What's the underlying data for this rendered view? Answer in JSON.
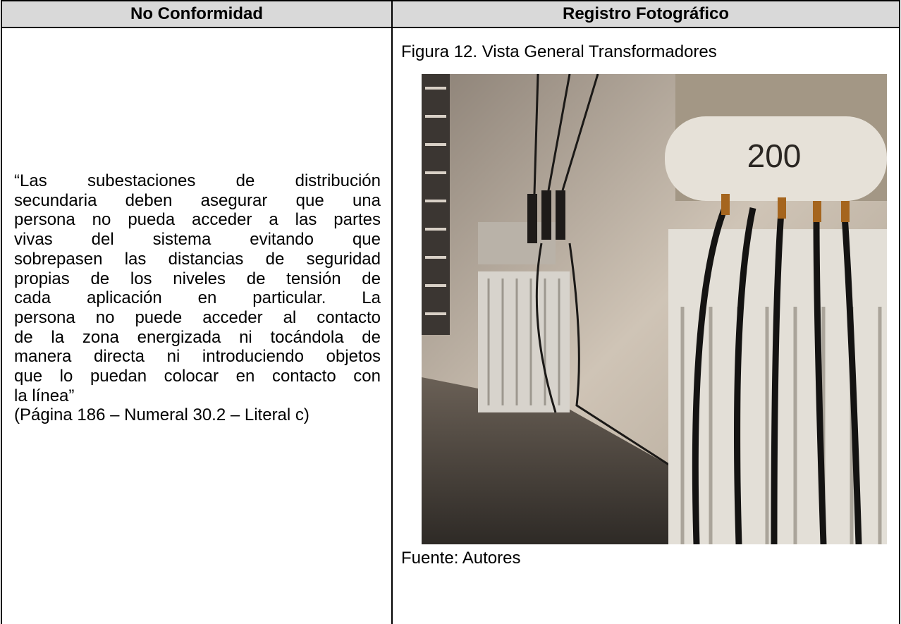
{
  "table": {
    "headers": [
      "No Conformidad",
      "Registro Fotográfico"
    ],
    "left_lines": [
      "“Las subestaciones de distribución",
      "secundaria deben asegurar que una",
      "persona no pueda acceder a las partes",
      "vivas del sistema evitando que",
      "sobrepasen las distancias de seguridad",
      "propias de los niveles de tensión de",
      "cada aplicación en particular. La",
      "persona no puede acceder al contacto",
      "de la zona energizada ni tocándola de",
      "manera directa ni introduciendo objetos",
      "que lo puedan colocar en contacto con",
      "la línea”",
      "(Página 186 – Numeral 30.2 – Literal c)"
    ],
    "figure": {
      "caption": "Figura 12.  Vista General Transformadores",
      "image_text": "200",
      "source": "Fuente:  Autores"
    }
  }
}
